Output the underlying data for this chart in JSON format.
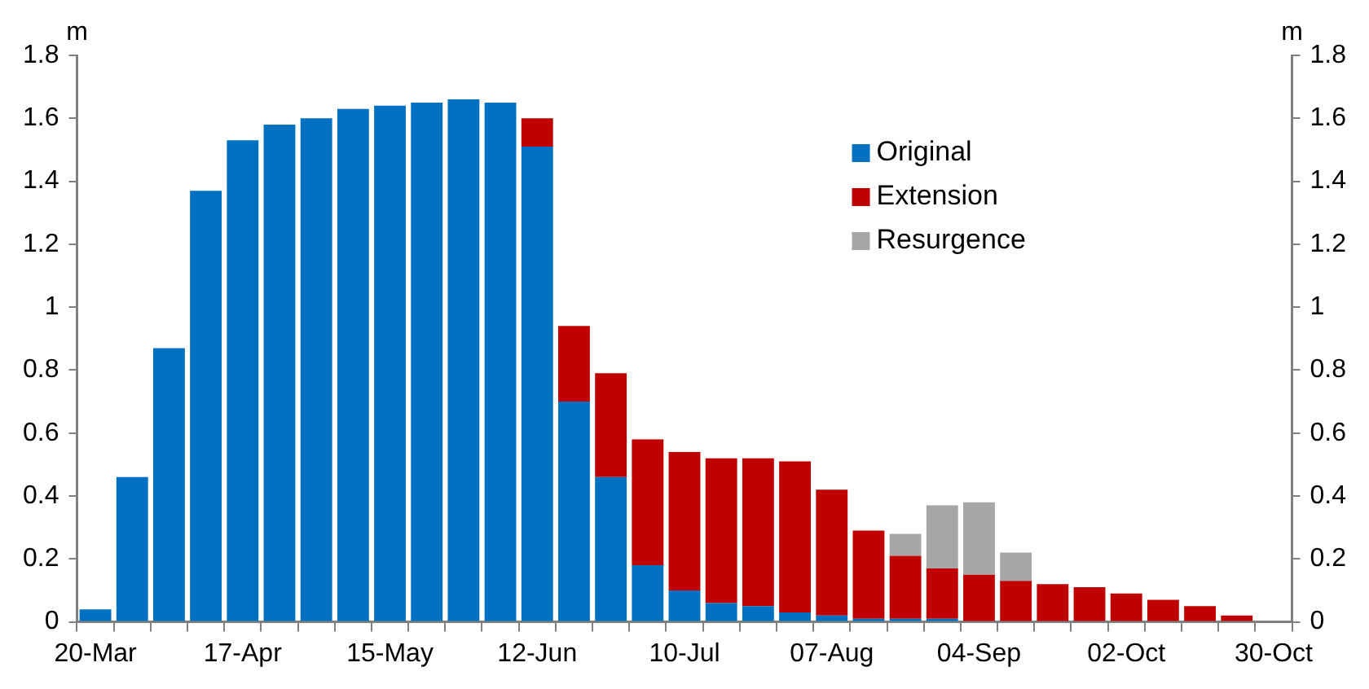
{
  "chart_data": {
    "type": "bar",
    "stacked": true,
    "categories": [
      "20-Mar",
      null,
      null,
      null,
      "17-Apr",
      null,
      null,
      null,
      "15-May",
      null,
      null,
      null,
      "12-Jun",
      null,
      null,
      null,
      "10-Jul",
      null,
      null,
      null,
      "07-Aug",
      null,
      null,
      null,
      "04-Sep",
      null,
      null,
      null,
      "02-Oct",
      null,
      null,
      null,
      "30-Oct"
    ],
    "series": [
      {
        "name": "Original",
        "color": "#0070c0",
        "values": [
          0.04,
          0.46,
          0.87,
          1.37,
          1.53,
          1.58,
          1.6,
          1.63,
          1.64,
          1.65,
          1.66,
          1.65,
          1.51,
          0.7,
          0.46,
          0.18,
          0.1,
          0.06,
          0.05,
          0.03,
          0.02,
          0.01,
          0.01,
          0.01,
          0,
          0,
          0,
          0,
          0,
          0,
          0,
          0,
          null
        ]
      },
      {
        "name": "Extension",
        "color": "#c00000",
        "values": [
          0,
          0,
          0,
          0,
          0,
          0,
          0,
          0,
          0,
          0,
          0,
          0,
          0.09,
          0.24,
          0.33,
          0.4,
          0.44,
          0.46,
          0.47,
          0.48,
          0.4,
          0.28,
          0.2,
          0.16,
          0.15,
          0.13,
          0.12,
          0.11,
          0.09,
          0.07,
          0.05,
          0.02,
          null
        ]
      },
      {
        "name": "Resurgence",
        "color": "#a6a6a6",
        "values": [
          0,
          0,
          0,
          0,
          0,
          0,
          0,
          0,
          0,
          0,
          0,
          0,
          0,
          0,
          0,
          0,
          0,
          0,
          0,
          0,
          0,
          0,
          0.07,
          0.2,
          0.23,
          0.09,
          0,
          0,
          0,
          0,
          0,
          0,
          null
        ]
      }
    ],
    "ylabel": "m",
    "y2label": "m",
    "ylim": [
      0,
      1.8
    ],
    "yticks": [
      0,
      0.2,
      0.4,
      0.6,
      0.8,
      1,
      1.2,
      1.4,
      1.6,
      1.8
    ],
    "y2lim": [
      0,
      1.8
    ],
    "y2ticks": [
      0,
      0.2,
      0.4,
      0.6,
      0.8,
      1,
      1.2,
      1.4,
      1.6,
      1.8
    ],
    "grid": false,
    "legend": "top right"
  }
}
